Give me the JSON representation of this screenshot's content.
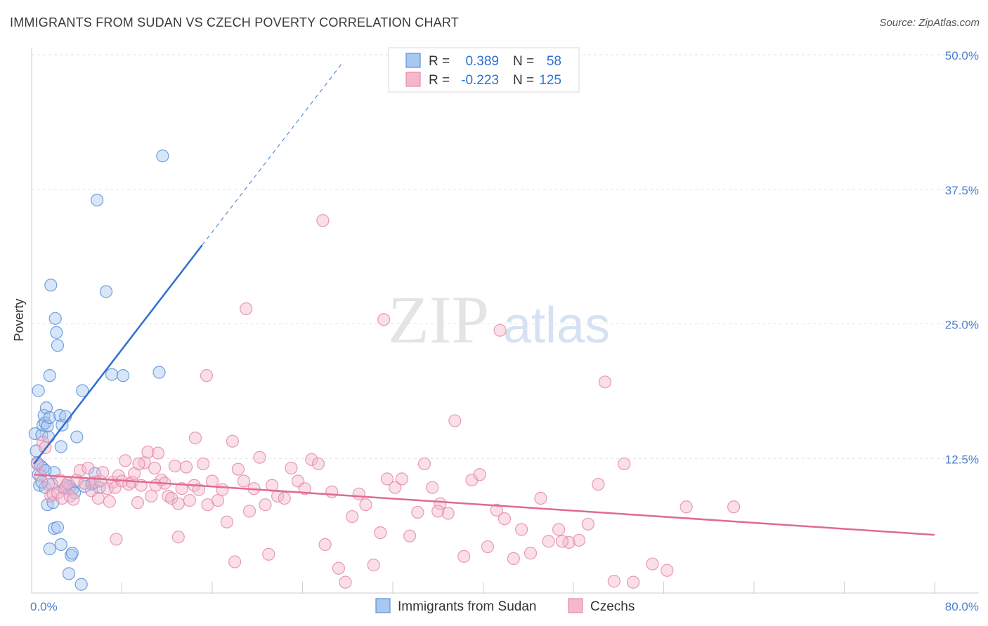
{
  "title": "IMMIGRANTS FROM SUDAN VS CZECH POVERTY CORRELATION CHART",
  "source": "Source: ZipAtlas.com",
  "watermark": {
    "zip": "ZIP",
    "atlas": "atlas"
  },
  "legend": {
    "rows": [
      {
        "r_label": "R =",
        "r_value": "0.389",
        "n_label": "N =",
        "n_value": "58",
        "color": "#a8c8f0"
      },
      {
        "r_label": "R =",
        "r_value": "-0.223",
        "n_label": "N =",
        "n_value": "125",
        "color": "#f5b8cb"
      }
    ]
  },
  "chart_data": {
    "type": "scatter",
    "title": "IMMIGRANTS FROM SUDAN VS CZECH POVERTY CORRELATION CHART",
    "xlabel": "",
    "ylabel": "Poverty",
    "xlim": [
      0,
      80
    ],
    "ylim": [
      0,
      50
    ],
    "x_tick_labels": [
      "0.0%",
      "80.0%"
    ],
    "y_tick_labels": [
      {
        "value": 12.5,
        "label": "12.5%"
      },
      {
        "value": 25.0,
        "label": "25.0%"
      },
      {
        "value": 37.5,
        "label": "37.5%"
      },
      {
        "value": 50.0,
        "label": "50.0%"
      }
    ],
    "grid": true,
    "legend_position": "bottom-center",
    "series": [
      {
        "name": "Immigrants from Sudan",
        "color": "#5b8fd9",
        "fill": "#a8c8f0",
        "trend": {
          "x1": 0.2,
          "y1": 12.0,
          "x2": 15.1,
          "y2": 32.3,
          "dash_to_x": 27.5,
          "dash_to_y": 49.2,
          "color": "#2f6fd0"
        },
        "points": [
          [
            0.3,
            14.8
          ],
          [
            0.4,
            13.2
          ],
          [
            0.5,
            12.1
          ],
          [
            0.6,
            11.0
          ],
          [
            0.7,
            10.0
          ],
          [
            0.8,
            11.8
          ],
          [
            0.9,
            14.7
          ],
          [
            1.0,
            15.6
          ],
          [
            1.1,
            16.5
          ],
          [
            1.2,
            15.8
          ],
          [
            1.3,
            17.2
          ],
          [
            1.4,
            15.5
          ],
          [
            1.5,
            14.5
          ],
          [
            1.6,
            16.3
          ],
          [
            1.0,
            11.6
          ],
          [
            1.2,
            9.8
          ],
          [
            1.4,
            8.2
          ],
          [
            1.8,
            10.1
          ],
          [
            1.9,
            8.4
          ],
          [
            2.0,
            11.2
          ],
          [
            2.1,
            25.5
          ],
          [
            2.2,
            24.2
          ],
          [
            2.3,
            23.0
          ],
          [
            1.7,
            28.6
          ],
          [
            2.5,
            16.5
          ],
          [
            2.7,
            15.6
          ],
          [
            3.0,
            16.4
          ],
          [
            3.1,
            10.0
          ],
          [
            3.4,
            9.9
          ],
          [
            3.6,
            9.6
          ],
          [
            4.5,
            18.8
          ],
          [
            5.3,
            10.1
          ],
          [
            5.4,
            10.2
          ],
          [
            5.6,
            11.1
          ],
          [
            5.8,
            36.5
          ],
          [
            6.0,
            9.8
          ],
          [
            6.6,
            28.0
          ],
          [
            7.1,
            20.3
          ],
          [
            8.1,
            20.2
          ],
          [
            11.3,
            20.5
          ],
          [
            11.6,
            40.6
          ],
          [
            0.6,
            18.8
          ],
          [
            1.6,
            20.2
          ],
          [
            2.6,
            13.6
          ],
          [
            2.9,
            9.7
          ],
          [
            3.5,
            3.5
          ],
          [
            4.0,
            14.5
          ],
          [
            2.0,
            6.0
          ],
          [
            2.3,
            6.1
          ],
          [
            2.6,
            4.5
          ],
          [
            1.6,
            4.1
          ],
          [
            3.6,
            3.7
          ],
          [
            3.3,
            1.8
          ],
          [
            4.4,
            0.8
          ],
          [
            1.2,
            11.4
          ],
          [
            0.9,
            10.3
          ],
          [
            3.8,
            9.3
          ],
          [
            4.7,
            9.9
          ]
        ]
      },
      {
        "name": "Czechs",
        "color": "#e58aa8",
        "fill": "#f5b8cb",
        "trend": {
          "x1": 0.2,
          "y1": 11.0,
          "x2": 80.0,
          "y2": 5.4,
          "color": "#e06a93"
        },
        "points": [
          [
            0.5,
            12.0
          ],
          [
            0.8,
            10.9
          ],
          [
            1.0,
            14.0
          ],
          [
            1.2,
            13.5
          ],
          [
            1.5,
            10.1
          ],
          [
            1.7,
            9.0
          ],
          [
            1.9,
            9.2
          ],
          [
            2.3,
            9.3
          ],
          [
            2.5,
            10.5
          ],
          [
            2.7,
            8.8
          ],
          [
            3.0,
            9.8
          ],
          [
            3.2,
            10.2
          ],
          [
            3.4,
            9.0
          ],
          [
            3.7,
            8.7
          ],
          [
            4.0,
            10.5
          ],
          [
            4.3,
            11.4
          ],
          [
            4.7,
            10.2
          ],
          [
            5.0,
            11.6
          ],
          [
            5.3,
            9.5
          ],
          [
            5.6,
            10.3
          ],
          [
            5.9,
            8.8
          ],
          [
            6.1,
            10.4
          ],
          [
            6.3,
            11.2
          ],
          [
            6.7,
            9.7
          ],
          [
            6.9,
            8.5
          ],
          [
            7.2,
            10.3
          ],
          [
            7.4,
            9.8
          ],
          [
            7.7,
            10.9
          ],
          [
            8.0,
            10.4
          ],
          [
            8.3,
            12.3
          ],
          [
            8.6,
            10.1
          ],
          [
            8.9,
            10.3
          ],
          [
            9.1,
            11.1
          ],
          [
            9.4,
            8.4
          ],
          [
            9.7,
            10.0
          ],
          [
            10.0,
            12.1
          ],
          [
            10.3,
            13.1
          ],
          [
            10.6,
            9.0
          ],
          [
            10.9,
            11.6
          ],
          [
            11.2,
            13.0
          ],
          [
            11.5,
            10.5
          ],
          [
            11.8,
            10.2
          ],
          [
            12.1,
            9.0
          ],
          [
            12.4,
            8.8
          ],
          [
            12.7,
            11.8
          ],
          [
            13.0,
            8.3
          ],
          [
            13.3,
            9.7
          ],
          [
            13.7,
            11.7
          ],
          [
            14.0,
            8.6
          ],
          [
            14.4,
            10.0
          ],
          [
            14.8,
            9.6
          ],
          [
            15.2,
            12.0
          ],
          [
            15.6,
            8.2
          ],
          [
            16.0,
            10.4
          ],
          [
            16.5,
            8.6
          ],
          [
            16.9,
            9.6
          ],
          [
            17.3,
            6.6
          ],
          [
            17.8,
            14.1
          ],
          [
            18.3,
            11.5
          ],
          [
            18.8,
            10.4
          ],
          [
            19.3,
            7.6
          ],
          [
            19.7,
            9.7
          ],
          [
            20.2,
            12.6
          ],
          [
            20.7,
            8.2
          ],
          [
            21.3,
            10.0
          ],
          [
            21.8,
            9.0
          ],
          [
            22.4,
            8.8
          ],
          [
            23.0,
            11.6
          ],
          [
            23.6,
            10.4
          ],
          [
            24.2,
            9.7
          ],
          [
            24.8,
            12.4
          ],
          [
            25.4,
            12.0
          ],
          [
            26.0,
            4.5
          ],
          [
            26.6,
            9.4
          ],
          [
            27.2,
            2.3
          ],
          [
            27.8,
            1.0
          ],
          [
            28.4,
            7.1
          ],
          [
            29.0,
            9.2
          ],
          [
            29.6,
            8.2
          ],
          [
            30.3,
            2.6
          ],
          [
            30.9,
            5.6
          ],
          [
            31.5,
            10.6
          ],
          [
            32.2,
            9.8
          ],
          [
            32.8,
            10.6
          ],
          [
            33.5,
            5.3
          ],
          [
            34.2,
            7.5
          ],
          [
            34.8,
            12.0
          ],
          [
            35.5,
            9.8
          ],
          [
            36.2,
            8.3
          ],
          [
            36.9,
            7.4
          ],
          [
            37.5,
            16.0
          ],
          [
            38.3,
            3.4
          ],
          [
            39.0,
            10.5
          ],
          [
            39.7,
            11.0
          ],
          [
            40.4,
            4.3
          ],
          [
            41.2,
            7.7
          ],
          [
            41.9,
            6.9
          ],
          [
            42.7,
            3.2
          ],
          [
            43.4,
            5.9
          ],
          [
            44.2,
            3.7
          ],
          [
            45.1,
            8.8
          ],
          [
            45.8,
            4.8
          ],
          [
            46.7,
            5.9
          ],
          [
            47.6,
            4.7
          ],
          [
            48.5,
            4.9
          ],
          [
            49.3,
            6.4
          ],
          [
            50.2,
            10.1
          ],
          [
            50.8,
            19.6
          ],
          [
            51.6,
            1.1
          ],
          [
            52.5,
            12.0
          ],
          [
            53.3,
            1.0
          ],
          [
            55.0,
            2.7
          ],
          [
            56.3,
            2.1
          ],
          [
            58.0,
            8.0
          ],
          [
            62.2,
            8.0
          ],
          [
            15.5,
            20.2
          ],
          [
            19.0,
            26.4
          ],
          [
            25.8,
            34.6
          ],
          [
            31.2,
            25.4
          ],
          [
            41.5,
            24.4
          ],
          [
            9.5,
            12.0
          ],
          [
            14.5,
            14.4
          ],
          [
            11.0,
            10.0
          ],
          [
            7.5,
            5.0
          ],
          [
            13.0,
            5.2
          ],
          [
            18.0,
            2.9
          ],
          [
            21.0,
            3.6
          ],
          [
            36.0,
            7.6
          ],
          [
            47.0,
            4.8
          ]
        ]
      }
    ]
  }
}
